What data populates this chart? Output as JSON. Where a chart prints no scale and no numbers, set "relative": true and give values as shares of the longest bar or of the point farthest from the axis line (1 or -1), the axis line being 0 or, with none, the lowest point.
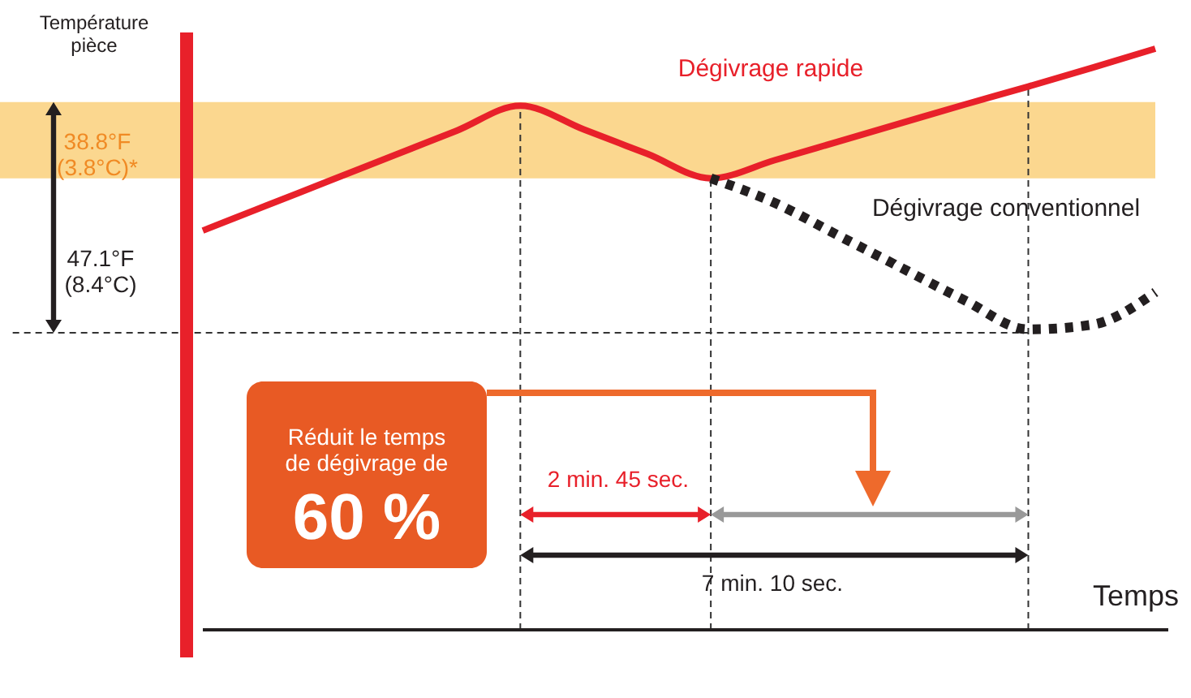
{
  "chart_data": {
    "type": "line",
    "relative": true,
    "xlabel": "Temps",
    "ylabel": "Température pièce",
    "categories": [
      null,
      null,
      null,
      null,
      null,
      null,
      null,
      null,
      null,
      null,
      null,
      null,
      null,
      null,
      null,
      null
    ],
    "series": [
      {
        "name": "Dégivrage rapide",
        "color": "#e8202a",
        "line_style": "solid",
        "values": [
          0.687,
          0.73,
          0.773,
          0.816,
          0.859,
          0.902,
          0.861,
          0.819,
          0.777,
          0.808,
          0.84,
          0.872,
          0.904,
          0.935,
          0.967,
          1.0
        ]
      },
      {
        "name": "Dégivrage conventionnel",
        "color": "#231f20",
        "line_style": "dotted",
        "values": [
          null,
          null,
          null,
          null,
          null,
          null,
          null,
          null,
          0.777,
          0.735,
          0.679,
          0.623,
          0.567,
          0.517,
          0.525,
          0.581
        ]
      }
    ],
    "bands": [
      {
        "axis": "y",
        "from": 0.777,
        "to": 0.908,
        "color": "#f7b733"
      }
    ],
    "ref_lines": [
      {
        "axis": "y",
        "value": 0.511,
        "line_style": "dashed"
      }
    ],
    "annotations": [
      "38.8°F\n(3.8°C)*",
      "47.1°F\n(8.4°C)",
      "Réduit le temps\nde dégivrage de",
      "60 %",
      "2 min. 45 sec.",
      "7 min. 10 sec."
    ],
    "grid": "x"
  }
}
